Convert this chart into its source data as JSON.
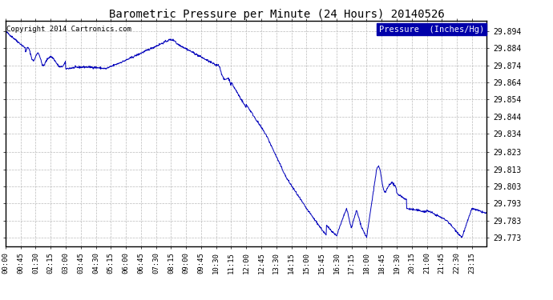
{
  "title": "Barometric Pressure per Minute (24 Hours) 20140526",
  "copyright": "Copyright 2014 Cartronics.com",
  "legend_label": "Pressure  (Inches/Hg)",
  "line_color": "#0000bb",
  "background_color": "#ffffff",
  "plot_bg_color": "#ffffff",
  "grid_color": "#bbbbbb",
  "legend_bg": "#0000aa",
  "legend_text_color": "#ffffff",
  "ylim_min": 29.768,
  "ylim_max": 29.9,
  "yticks": [
    29.773,
    29.783,
    29.793,
    29.803,
    29.813,
    29.823,
    29.834,
    29.844,
    29.854,
    29.864,
    29.874,
    29.884,
    29.894
  ],
  "xtick_labels": [
    "00:00",
    "00:45",
    "01:30",
    "02:15",
    "03:00",
    "03:45",
    "04:30",
    "05:15",
    "06:00",
    "06:45",
    "07:30",
    "08:15",
    "09:00",
    "09:45",
    "10:30",
    "11:15",
    "12:00",
    "12:45",
    "13:30",
    "14:15",
    "15:00",
    "15:45",
    "16:30",
    "17:15",
    "18:00",
    "18:45",
    "19:30",
    "20:15",
    "21:00",
    "21:45",
    "22:30",
    "23:15"
  ]
}
